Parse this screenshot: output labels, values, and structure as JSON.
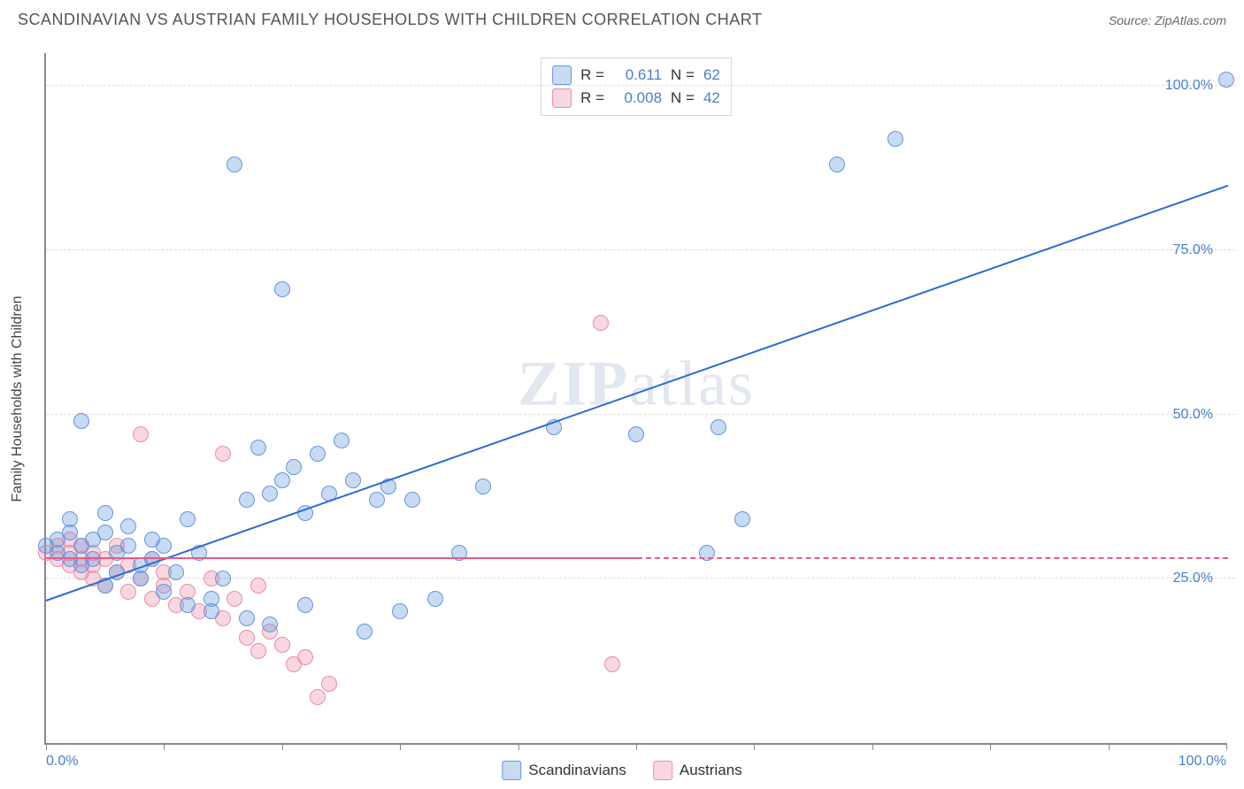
{
  "header": {
    "title": "SCANDINAVIAN VS AUSTRIAN FAMILY HOUSEHOLDS WITH CHILDREN CORRELATION CHART",
    "source": "Source: ZipAtlas.com"
  },
  "watermark": {
    "part1": "ZIP",
    "part2": "atlas"
  },
  "axes": {
    "y_label": "Family Households with Children",
    "xlim": [
      0,
      100
    ],
    "ylim": [
      0,
      105
    ],
    "x_ticks": [
      0,
      10,
      20,
      30,
      40,
      50,
      60,
      70,
      80,
      90,
      100
    ],
    "x_tick_labels": {
      "0": "0.0%",
      "100": "100.0%"
    },
    "y_gridlines": [
      25,
      50,
      75,
      100
    ],
    "y_tick_labels": {
      "25": "25.0%",
      "50": "50.0%",
      "75": "75.0%",
      "100": "100.0%"
    },
    "grid_color": "#dddddd",
    "axis_color": "#888888",
    "tick_label_color": "#4a7ec9"
  },
  "series": {
    "scandinavians": {
      "label": "Scandinavians",
      "fill_color": "rgba(100,150,220,0.35)",
      "stroke_color": "#6496dc",
      "trend_color": "#2e6bd6",
      "marker_radius": 9,
      "R": "0.611",
      "N": "62",
      "trend": {
        "x1": 0,
        "y1": 22,
        "x2": 100,
        "y2": 85
      },
      "points": [
        [
          0,
          30
        ],
        [
          1,
          31
        ],
        [
          1,
          29
        ],
        [
          2,
          28
        ],
        [
          2,
          32
        ],
        [
          2,
          34
        ],
        [
          3,
          30
        ],
        [
          3,
          27
        ],
        [
          3,
          49
        ],
        [
          4,
          31
        ],
        [
          4,
          28
        ],
        [
          5,
          35
        ],
        [
          5,
          24
        ],
        [
          5,
          32
        ],
        [
          6,
          29
        ],
        [
          6,
          26
        ],
        [
          7,
          30
        ],
        [
          7,
          33
        ],
        [
          8,
          27
        ],
        [
          8,
          25
        ],
        [
          9,
          28
        ],
        [
          9,
          31
        ],
        [
          10,
          30
        ],
        [
          10,
          23
        ],
        [
          11,
          26
        ],
        [
          12,
          34
        ],
        [
          12,
          21
        ],
        [
          13,
          29
        ],
        [
          14,
          22
        ],
        [
          14,
          20
        ],
        [
          15,
          25
        ],
        [
          16,
          88
        ],
        [
          17,
          37
        ],
        [
          17,
          19
        ],
        [
          18,
          45
        ],
        [
          19,
          38
        ],
        [
          19,
          18
        ],
        [
          20,
          69
        ],
        [
          20,
          40
        ],
        [
          21,
          42
        ],
        [
          22,
          35
        ],
        [
          22,
          21
        ],
        [
          23,
          44
        ],
        [
          24,
          38
        ],
        [
          25,
          46
        ],
        [
          26,
          40
        ],
        [
          27,
          17
        ],
        [
          28,
          37
        ],
        [
          29,
          39
        ],
        [
          30,
          20
        ],
        [
          31,
          37
        ],
        [
          33,
          22
        ],
        [
          35,
          29
        ],
        [
          37,
          39
        ],
        [
          43,
          48
        ],
        [
          50,
          47
        ],
        [
          56,
          29
        ],
        [
          57,
          48
        ],
        [
          59,
          34
        ],
        [
          67,
          88
        ],
        [
          72,
          92
        ],
        [
          100,
          101
        ]
      ]
    },
    "austrians": {
      "label": "Austrians",
      "fill_color": "rgba(235,140,165,0.35)",
      "stroke_color": "#eb8ca5",
      "trend_color": "#e85a8a",
      "marker_radius": 9,
      "R": "0.008",
      "N": "42",
      "trend_solid": {
        "x1": 0,
        "y1": 28.5,
        "x2": 50,
        "y2": 28.5
      },
      "trend_dash": {
        "x1": 50,
        "y1": 28.5,
        "x2": 100,
        "y2": 28.5
      },
      "points": [
        [
          0,
          29
        ],
        [
          1,
          28
        ],
        [
          1,
          30
        ],
        [
          2,
          27
        ],
        [
          2,
          29
        ],
        [
          2,
          31
        ],
        [
          3,
          26
        ],
        [
          3,
          28
        ],
        [
          3,
          30
        ],
        [
          4,
          25
        ],
        [
          4,
          27
        ],
        [
          4,
          29
        ],
        [
          5,
          24
        ],
        [
          5,
          28
        ],
        [
          6,
          26
        ],
        [
          6,
          30
        ],
        [
          7,
          23
        ],
        [
          7,
          27
        ],
        [
          8,
          25
        ],
        [
          8,
          47
        ],
        [
          9,
          22
        ],
        [
          9,
          28
        ],
        [
          10,
          24
        ],
        [
          10,
          26
        ],
        [
          11,
          21
        ],
        [
          12,
          23
        ],
        [
          13,
          20
        ],
        [
          14,
          25
        ],
        [
          15,
          44
        ],
        [
          15,
          19
        ],
        [
          16,
          22
        ],
        [
          17,
          16
        ],
        [
          18,
          24
        ],
        [
          18,
          14
        ],
        [
          19,
          17
        ],
        [
          20,
          15
        ],
        [
          21,
          12
        ],
        [
          22,
          13
        ],
        [
          23,
          7
        ],
        [
          24,
          9
        ],
        [
          47,
          64
        ],
        [
          48,
          12
        ]
      ]
    }
  },
  "r_legend": {
    "r_label": "R =",
    "n_label": "N ="
  }
}
